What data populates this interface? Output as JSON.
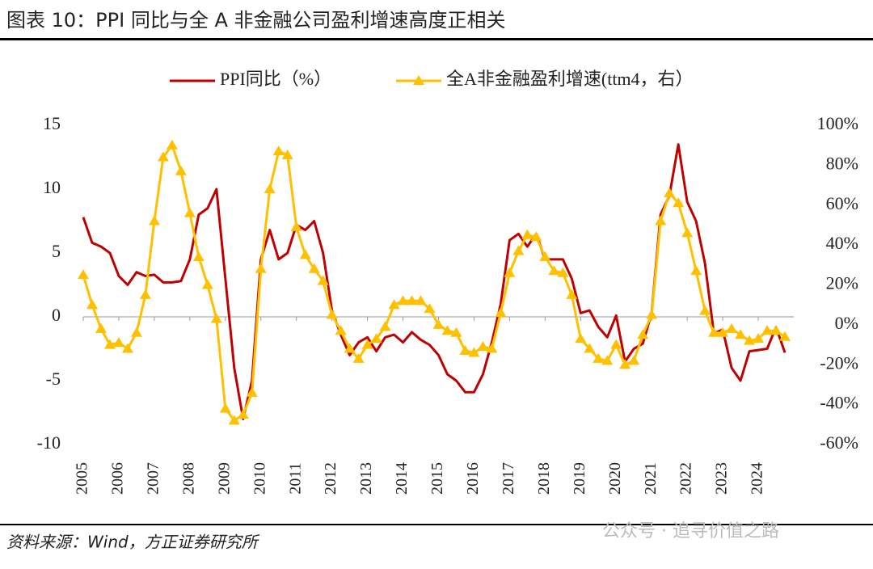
{
  "header": {
    "title": "图表 10：PPI 同比与全 A 非金融公司盈利增速高度正相关"
  },
  "footer": {
    "source": "资料来源：Wind，方正证券研究所",
    "watermark": "公众号 · 追寻价值之路"
  },
  "chart_data": {
    "type": "line",
    "legend": "top",
    "x": [
      2005,
      2005.25,
      2005.5,
      2005.75,
      2006,
      2006.25,
      2006.5,
      2006.75,
      2007,
      2007.25,
      2007.5,
      2007.75,
      2008,
      2008.25,
      2008.5,
      2008.75,
      2009,
      2009.25,
      2009.5,
      2009.75,
      2010,
      2010.25,
      2010.5,
      2010.75,
      2011,
      2011.25,
      2011.5,
      2011.75,
      2012,
      2012.25,
      2012.5,
      2012.75,
      2013,
      2013.25,
      2013.5,
      2013.75,
      2014,
      2014.25,
      2014.5,
      2014.75,
      2015,
      2015.25,
      2015.5,
      2015.75,
      2016,
      2016.25,
      2016.5,
      2016.75,
      2017,
      2017.25,
      2017.5,
      2017.75,
      2018,
      2018.25,
      2018.5,
      2018.75,
      2019,
      2019.25,
      2019.5,
      2019.75,
      2020,
      2020.25,
      2020.5,
      2020.75,
      2021,
      2021.25,
      2021.5,
      2021.75,
      2022,
      2022.25,
      2022.5,
      2022.75,
      2023,
      2023.25,
      2023.5,
      2023.75,
      2024,
      2024.25,
      2024.5,
      2024.75
    ],
    "series": [
      {
        "name": "PPI同比（%）",
        "color": "#c00000",
        "values": [
          7.8,
          5.8,
          5.5,
          5.0,
          3.2,
          2.5,
          3.5,
          3.2,
          3.3,
          2.7,
          2.7,
          2.8,
          4.5,
          8.0,
          8.5,
          10.0,
          3.0,
          -4.0,
          -8.0,
          -5.0,
          4.5,
          6.8,
          4.5,
          5.0,
          7.2,
          6.8,
          7.5,
          5.0,
          0.5,
          -1.4,
          -3.0,
          -2.0,
          -1.6,
          -2.7,
          -1.6,
          -1.4,
          -2.0,
          -1.2,
          -1.8,
          -2.2,
          -3.0,
          -4.5,
          -5.0,
          -5.9,
          -5.9,
          -4.5,
          -2.0,
          1.0,
          6.0,
          6.5,
          5.5,
          6.5,
          4.5,
          4.5,
          4.5,
          3.0,
          0.3,
          0.5,
          -0.8,
          -1.6,
          0.1,
          -3.5,
          -2.5,
          -2.1,
          0.3,
          8.0,
          9.5,
          13.5,
          9.0,
          7.5,
          4.2,
          -1.3,
          -1.0,
          -4.0,
          -5.0,
          -2.7,
          -2.6,
          -2.5,
          -0.8,
          -2.8
        ]
      },
      {
        "name": "全A非金融盈利增速(ttm4，右）",
        "color": "#ffc000",
        "axis": "y2",
        "marker": "triangle",
        "values": [
          25,
          10,
          -2,
          -10,
          -9,
          -12,
          -4,
          15,
          52,
          84,
          90,
          77,
          56,
          34,
          20,
          3,
          -42,
          -48,
          -45,
          -34,
          28,
          68,
          87,
          85,
          49,
          35,
          28,
          22,
          5,
          -3,
          -12,
          -17,
          -10,
          -7,
          -1,
          10,
          12,
          12,
          12,
          8,
          0,
          -3,
          -4,
          -13,
          -14,
          -11,
          -12,
          6,
          26,
          37,
          45,
          44,
          34,
          27,
          26,
          15,
          -7,
          -12,
          -17,
          -18,
          -10,
          -20,
          -18,
          -5,
          5,
          52,
          66,
          61,
          46,
          27,
          7,
          -4,
          -4,
          -2,
          -5,
          -8,
          -7,
          -3,
          -3,
          -6
        ]
      }
    ],
    "xlim": [
      2005,
      2025
    ],
    "xticks": [
      2005,
      2006,
      2007,
      2008,
      2009,
      2010,
      2011,
      2012,
      2013,
      2014,
      2015,
      2016,
      2017,
      2018,
      2019,
      2020,
      2021,
      2022,
      2023,
      2024
    ],
    "ylim": [
      -10,
      15
    ],
    "yticks": [
      15,
      10,
      5,
      0,
      -5,
      -10
    ],
    "y2lim": [
      -60,
      100
    ],
    "y2ticks": [
      {
        "value": 100,
        "label": "100%"
      },
      {
        "value": 80,
        "label": "80%"
      },
      {
        "value": 60,
        "label": "60%"
      },
      {
        "value": 40,
        "label": "40%"
      },
      {
        "value": 20,
        "label": "20%"
      },
      {
        "value": 0,
        "label": "0%"
      },
      {
        "value": -20,
        "label": "-20%"
      },
      {
        "value": -40,
        "label": "-40%"
      },
      {
        "value": -60,
        "label": "-60%"
      }
    ]
  }
}
